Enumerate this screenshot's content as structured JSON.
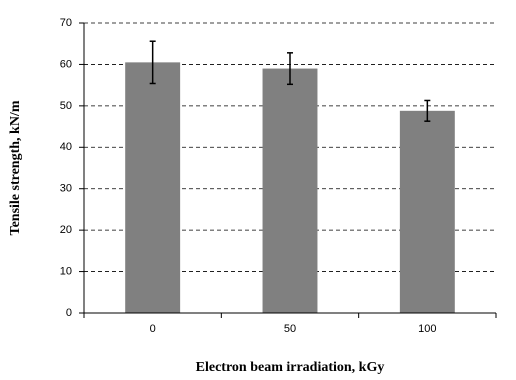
{
  "chart_data": {
    "type": "bar",
    "x_label": "Electron beam irradiation, kGy",
    "y_label": "Tensile strength, kN/m",
    "categories": [
      "0",
      "50",
      "100"
    ],
    "values": [
      60.5,
      59,
      48.8
    ],
    "errors": [
      5.1,
      3.8,
      2.5
    ],
    "color": "#808080",
    "ylim": [
      0,
      70
    ],
    "yticks": [
      0,
      10,
      20,
      30,
      40,
      50,
      60,
      70
    ],
    "grid": true
  }
}
